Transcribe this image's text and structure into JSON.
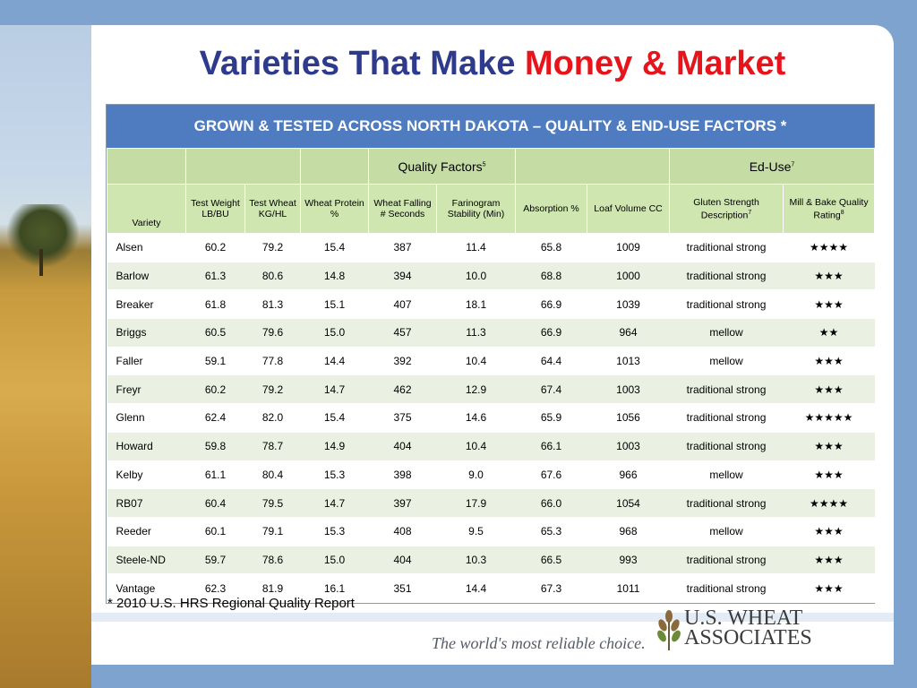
{
  "title": {
    "main": "Varieties That Make ",
    "accent": "Money & Market"
  },
  "table": {
    "banner": "GROWN & TESTED ACROSS NORTH DAKOTA – QUALITY & END-USE FACTORS *",
    "groups": {
      "quality": "Quality Factors",
      "quality_sup": "5",
      "enduse": "Ed-Use",
      "enduse_sup": "7"
    },
    "subheaders": {
      "variety": "Variety",
      "test_weight_lb": "Test Weight LB/BU",
      "test_weight_kg": "Test Wheat KG/HL",
      "protein": "Wheat Protein %",
      "falling": "Wheat Falling # Seconds",
      "farinogram": "Farinogram Stability (Min)",
      "absorption": "Absorption %",
      "loaf": "Loaf Volume CC",
      "gluten": "Gluten Strength Description",
      "gluten_sup": "7",
      "mill": "Mill & Bake Quality Rating",
      "mill_sup": "8"
    },
    "rows": [
      [
        "Alsen",
        "60.2",
        "79.2",
        "15.4",
        "387",
        "11.4",
        "65.8",
        "1009",
        "traditional strong",
        "★★★★"
      ],
      [
        "Barlow",
        "61.3",
        "80.6",
        "14.8",
        "394",
        "10.0",
        "68.8",
        "1000",
        "traditional strong",
        "★★★"
      ],
      [
        "Breaker",
        "61.8",
        "81.3",
        "15.1",
        "407",
        "18.1",
        "66.9",
        "1039",
        "traditional strong",
        "★★★"
      ],
      [
        "Briggs",
        "60.5",
        "79.6",
        "15.0",
        "457",
        "11.3",
        "66.9",
        "964",
        "mellow",
        "★★"
      ],
      [
        "Faller",
        "59.1",
        "77.8",
        "14.4",
        "392",
        "10.4",
        "64.4",
        "1013",
        "mellow",
        "★★★"
      ],
      [
        "Freyr",
        "60.2",
        "79.2",
        "14.7",
        "462",
        "12.9",
        "67.4",
        "1003",
        "traditional strong",
        "★★★"
      ],
      [
        "Glenn",
        "62.4",
        "82.0",
        "15.4",
        "375",
        "14.6",
        "65.9",
        "1056",
        "traditional strong",
        "★★★★★"
      ],
      [
        "Howard",
        "59.8",
        "78.7",
        "14.9",
        "404",
        "10.4",
        "66.1",
        "1003",
        "traditional strong",
        "★★★"
      ],
      [
        "Kelby",
        "61.1",
        "80.4",
        "15.3",
        "398",
        "9.0",
        "67.6",
        "966",
        "mellow",
        "★★★"
      ],
      [
        "RB07",
        "60.4",
        "79.5",
        "14.7",
        "397",
        "17.9",
        "66.0",
        "1054",
        "traditional strong",
        "★★★★"
      ],
      [
        "Reeder",
        "60.1",
        "79.1",
        "15.3",
        "408",
        "9.5",
        "65.3",
        "968",
        "mellow",
        "★★★"
      ],
      [
        "Steele-ND",
        "59.7",
        "78.6",
        "15.0",
        "404",
        "10.3",
        "66.5",
        "993",
        "traditional strong",
        "★★★"
      ],
      [
        "Vantage",
        "62.3",
        "81.9",
        "16.1",
        "351",
        "14.4",
        "67.3",
        "1011",
        "traditional strong",
        "★★★"
      ]
    ]
  },
  "footnote": "* 2010 U.S. HRS Regional Quality Report",
  "tagline": "The world's most reliable choice.",
  "logo": {
    "line1": "U.S. WHEAT",
    "line2": "ASSOCIATES"
  },
  "colors": {
    "title": "#2e3a8c",
    "accent": "#e8141b",
    "banner": "#4f7cc1",
    "header_green": "#c5dda4",
    "row_alt": "#eaf1e2"
  }
}
